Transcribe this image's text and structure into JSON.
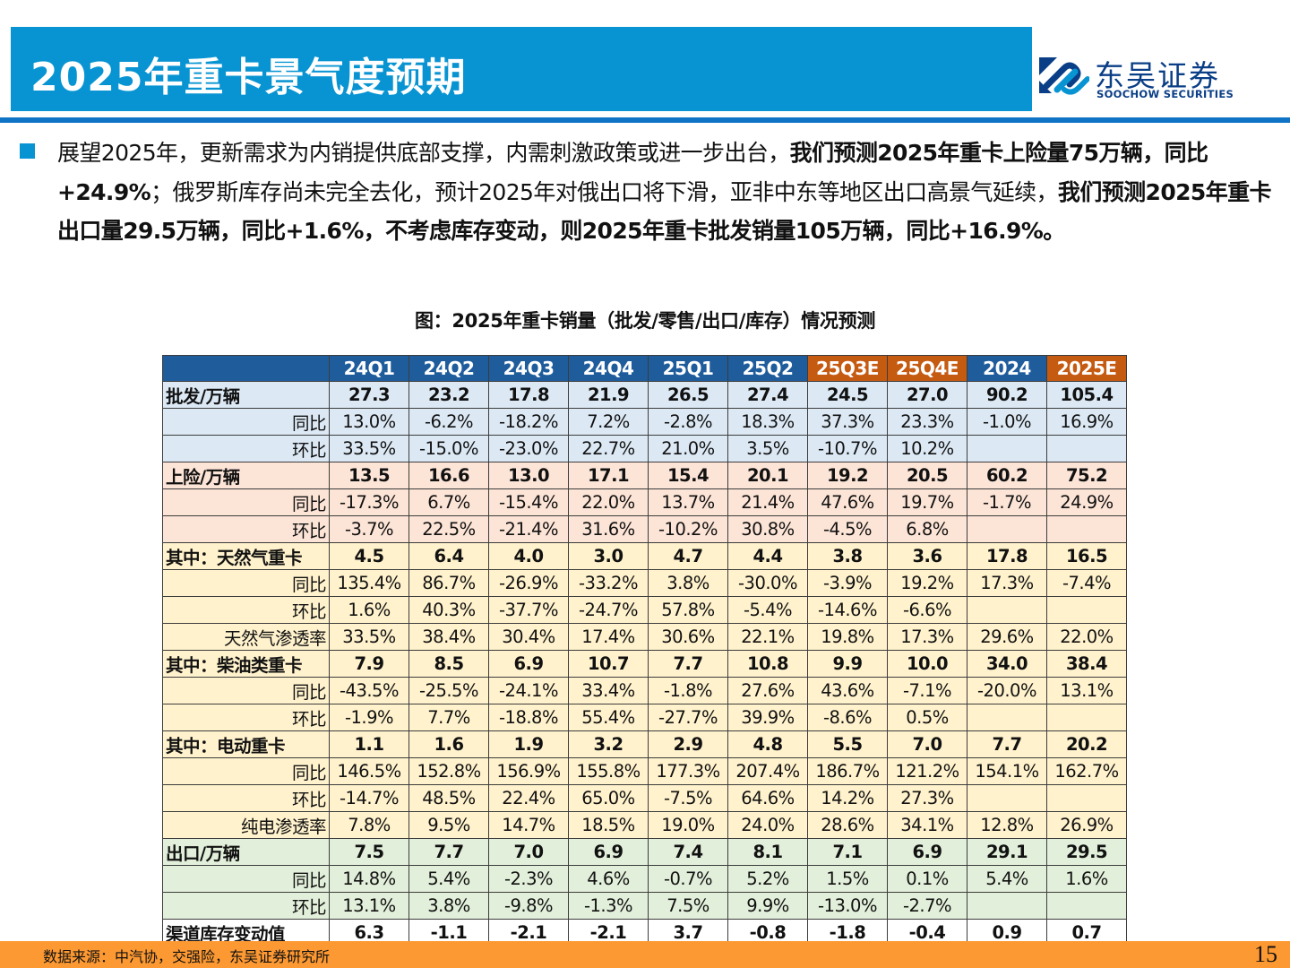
{
  "header": {
    "title": "2025年重卡景气度预期",
    "logo": {
      "name_cn": "东吴证券",
      "name_en": "SOOCHOW SECURITIES",
      "icon": "soochow-logo-icon"
    }
  },
  "body": {
    "bullet_icon": "square-bullet-icon",
    "paragraph": [
      {
        "text": "展望2025年，更新需求为内销提供底部支撑，内需刺激政策或进一步出台，",
        "bold": false
      },
      {
        "text": "我们预测2025年重卡上险量75万辆，同比+24.9%",
        "bold": true
      },
      {
        "text": "；俄罗斯库存尚未完全去化，预计2025年对俄出口将下滑，亚非中东等地区出口高景气延续，",
        "bold": false
      },
      {
        "text": "我们预测2025年重卡出口量29.5万辆，同比+1.6%，不考虑库存变动，则2025年重卡批发销量105万辆，同比+16.9%。",
        "bold": true
      }
    ]
  },
  "figure": {
    "title": "图：2025年重卡销量（批发/零售/出口/库存）情况预测",
    "columns": [
      {
        "label": "24Q1",
        "style": "blue"
      },
      {
        "label": "24Q2",
        "style": "blue"
      },
      {
        "label": "24Q3",
        "style": "blue"
      },
      {
        "label": "24Q4",
        "style": "blue"
      },
      {
        "label": "25Q1",
        "style": "blue"
      },
      {
        "label": "25Q2",
        "style": "blue"
      },
      {
        "label": "25Q3E",
        "style": "orange"
      },
      {
        "label": "25Q4E",
        "style": "orange"
      },
      {
        "label": "2024",
        "style": "blue"
      },
      {
        "label": "2025E",
        "style": "orange"
      }
    ],
    "rows": [
      {
        "label": "批发/万辆",
        "type": "main",
        "group": "blue",
        "values": [
          "27.3",
          "23.2",
          "17.8",
          "21.9",
          "26.5",
          "27.4",
          "24.5",
          "27.0",
          "90.2",
          "105.4"
        ]
      },
      {
        "label": "同比",
        "type": "sub",
        "group": "blue",
        "values": [
          "13.0%",
          "-6.2%",
          "-18.2%",
          "7.2%",
          "-2.8%",
          "18.3%",
          "37.3%",
          "23.3%",
          "-1.0%",
          "16.9%"
        ]
      },
      {
        "label": "环比",
        "type": "sub",
        "group": "blue",
        "values": [
          "33.5%",
          "-15.0%",
          "-23.0%",
          "22.7%",
          "21.0%",
          "3.5%",
          "-10.7%",
          "10.2%",
          "",
          ""
        ]
      },
      {
        "label": "上险/万辆",
        "type": "main",
        "group": "pink",
        "values": [
          "13.5",
          "16.6",
          "13.0",
          "17.1",
          "15.4",
          "20.1",
          "19.2",
          "20.5",
          "60.2",
          "75.2"
        ]
      },
      {
        "label": "同比",
        "type": "sub",
        "group": "pink",
        "values": [
          "-17.3%",
          "6.7%",
          "-15.4%",
          "22.0%",
          "13.7%",
          "21.4%",
          "47.6%",
          "19.7%",
          "-1.7%",
          "24.9%"
        ]
      },
      {
        "label": "环比",
        "type": "sub",
        "group": "pink",
        "values": [
          "-3.7%",
          "22.5%",
          "-21.4%",
          "31.6%",
          "-10.2%",
          "30.8%",
          "-4.5%",
          "6.8%",
          "",
          ""
        ]
      },
      {
        "label": "其中：天然气重卡",
        "type": "main",
        "group": "yellow",
        "values": [
          "4.5",
          "6.4",
          "4.0",
          "3.0",
          "4.7",
          "4.4",
          "3.8",
          "3.6",
          "17.8",
          "16.5"
        ]
      },
      {
        "label": "同比",
        "type": "sub",
        "group": "yellow",
        "values": [
          "135.4%",
          "86.7%",
          "-26.9%",
          "-33.2%",
          "3.8%",
          "-30.0%",
          "-3.9%",
          "19.2%",
          "17.3%",
          "-7.4%"
        ]
      },
      {
        "label": "环比",
        "type": "sub",
        "group": "yellow",
        "values": [
          "1.6%",
          "40.3%",
          "-37.7%",
          "-24.7%",
          "57.8%",
          "-5.4%",
          "-14.6%",
          "-6.6%",
          "",
          ""
        ]
      },
      {
        "label": "天然气渗透率",
        "type": "sub",
        "group": "yellow",
        "values": [
          "33.5%",
          "38.4%",
          "30.4%",
          "17.4%",
          "30.6%",
          "22.1%",
          "19.8%",
          "17.3%",
          "29.6%",
          "22.0%"
        ]
      },
      {
        "label": "其中：柴油类重卡",
        "type": "main",
        "group": "yellow",
        "values": [
          "7.9",
          "8.5",
          "6.9",
          "10.7",
          "7.7",
          "10.8",
          "9.9",
          "10.0",
          "34.0",
          "38.4"
        ]
      },
      {
        "label": "同比",
        "type": "sub",
        "group": "yellow",
        "values": [
          "-43.5%",
          "-25.5%",
          "-24.1%",
          "33.4%",
          "-1.8%",
          "27.6%",
          "43.6%",
          "-7.1%",
          "-20.0%",
          "13.1%"
        ]
      },
      {
        "label": "环比",
        "type": "sub",
        "group": "yellow",
        "values": [
          "-1.9%",
          "7.7%",
          "-18.8%",
          "55.4%",
          "-27.7%",
          "39.9%",
          "-8.6%",
          "0.5%",
          "",
          ""
        ]
      },
      {
        "label": "其中：电动重卡",
        "type": "main",
        "group": "yellow",
        "values": [
          "1.1",
          "1.6",
          "1.9",
          "3.2",
          "2.9",
          "4.8",
          "5.5",
          "7.0",
          "7.7",
          "20.2"
        ]
      },
      {
        "label": "同比",
        "type": "sub",
        "group": "yellow",
        "values": [
          "146.5%",
          "152.8%",
          "156.9%",
          "155.8%",
          "177.3%",
          "207.4%",
          "186.7%",
          "121.2%",
          "154.1%",
          "162.7%"
        ]
      },
      {
        "label": "环比",
        "type": "sub",
        "group": "yellow",
        "values": [
          "-14.7%",
          "48.5%",
          "22.4%",
          "65.0%",
          "-7.5%",
          "64.6%",
          "14.2%",
          "27.3%",
          "",
          ""
        ]
      },
      {
        "label": "纯电渗透率",
        "type": "sub",
        "group": "yellow",
        "values": [
          "7.8%",
          "9.5%",
          "14.7%",
          "18.5%",
          "19.0%",
          "24.0%",
          "28.6%",
          "34.1%",
          "12.8%",
          "26.9%"
        ]
      },
      {
        "label": "出口/万辆",
        "type": "main",
        "group": "green",
        "values": [
          "7.5",
          "7.7",
          "7.0",
          "6.9",
          "7.4",
          "8.1",
          "7.1",
          "6.9",
          "29.1",
          "29.5"
        ]
      },
      {
        "label": "同比",
        "type": "sub",
        "group": "green",
        "values": [
          "14.8%",
          "5.4%",
          "-2.3%",
          "4.6%",
          "-0.7%",
          "5.2%",
          "1.5%",
          "0.1%",
          "5.4%",
          "1.6%"
        ]
      },
      {
        "label": "环比",
        "type": "sub",
        "group": "green",
        "values": [
          "13.1%",
          "3.8%",
          "-9.8%",
          "-1.3%",
          "7.5%",
          "9.9%",
          "-13.0%",
          "-2.7%",
          "",
          ""
        ]
      },
      {
        "label": "渠道库存变动值",
        "type": "main",
        "group": "white",
        "values": [
          "6.3",
          "-1.1",
          "-2.1",
          "-2.1",
          "3.7",
          "-0.8",
          "-1.8",
          "-0.4",
          "0.9",
          "0.7"
        ]
      }
    ]
  },
  "colors": {
    "title_bar": "#0894d2",
    "rule": "#1074c6",
    "header_blue": "#1f5c9c",
    "header_orange": "#c55a11",
    "group_blue": "#dce9f5",
    "group_pink": "#fce4d6",
    "group_yellow": "#fff2cc",
    "group_green": "#e2efda",
    "footer": "#fd9932"
  },
  "footer": {
    "source": "数据来源：中汽协，交强险，东吴证券研究所",
    "page_number": "15"
  }
}
